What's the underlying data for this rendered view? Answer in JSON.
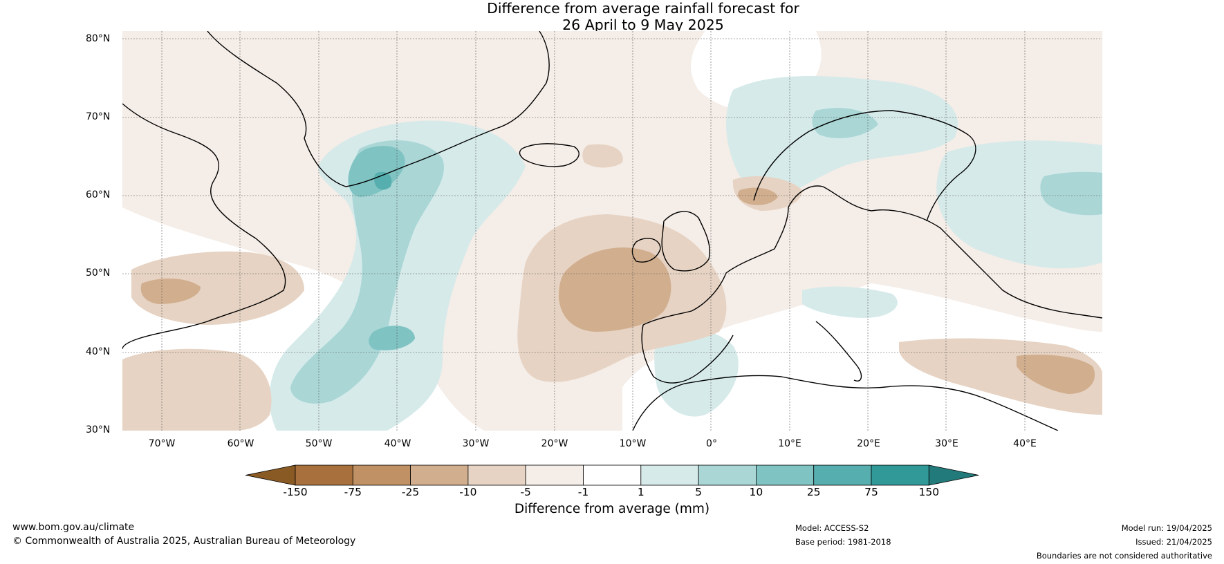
{
  "title": {
    "line1": "Difference from average rainfall forecast for",
    "line2": "26 April to 9 May 2025"
  },
  "axes": {
    "lat_labels": [
      "80°N",
      "70°N",
      "60°N",
      "50°N",
      "40°N",
      "30°N"
    ],
    "lon_labels": [
      "70°W",
      "60°W",
      "50°W",
      "40°W",
      "30°W",
      "20°W",
      "10°W",
      "0°",
      "10°E",
      "20°E",
      "30°E",
      "40°E"
    ]
  },
  "colorbar": {
    "ticks": [
      "-150",
      "-75",
      "-25",
      "-10",
      "-5",
      "-1",
      "1",
      "5",
      "10",
      "25",
      "75",
      "150"
    ],
    "colors": [
      "#8a5a25",
      "#a8703d",
      "#c09164",
      "#d1ae8e",
      "#e6d3c3",
      "#f5ede7",
      "#ffffff",
      "#d6eaea",
      "#aad6d6",
      "#80c3c3",
      "#56aeae",
      "#329999",
      "#237a7a"
    ],
    "label": "Difference from average (mm)"
  },
  "footer": {
    "website": "www.bom.gov.au/climate",
    "copyright": "© Commonwealth of Australia 2025, Australian Bureau of Meteorology",
    "model": "Model: ACCESS-S2",
    "base_period": "Base period: 1981-2018",
    "model_run": "Model run: 19/04/2025",
    "issued": "Issued: 21/04/2025",
    "disclaimer": "Boundaries are not considered authoritative"
  }
}
